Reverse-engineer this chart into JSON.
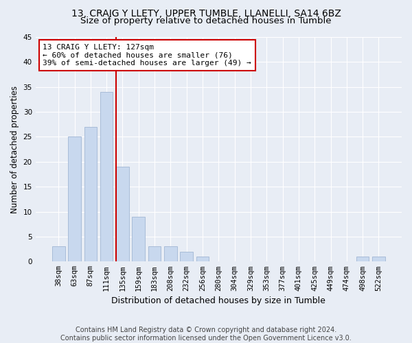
{
  "title1": "13, CRAIG Y LLETY, UPPER TUMBLE, LLANELLI, SA14 6BZ",
  "title2": "Size of property relative to detached houses in Tumble",
  "xlabel": "Distribution of detached houses by size in Tumble",
  "ylabel": "Number of detached properties",
  "categories": [
    "38sqm",
    "63sqm",
    "87sqm",
    "111sqm",
    "135sqm",
    "159sqm",
    "183sqm",
    "208sqm",
    "232sqm",
    "256sqm",
    "280sqm",
    "304sqm",
    "329sqm",
    "353sqm",
    "377sqm",
    "401sqm",
    "425sqm",
    "449sqm",
    "474sqm",
    "498sqm",
    "522sqm"
  ],
  "values": [
    3,
    25,
    27,
    34,
    19,
    9,
    3,
    3,
    2,
    1,
    0,
    0,
    0,
    0,
    0,
    0,
    0,
    0,
    0,
    1,
    1
  ],
  "bar_color": "#c8d8ee",
  "bar_edgecolor": "#a8bcd8",
  "vline_color": "#cc0000",
  "vline_index": 3.6,
  "annotation_text": "13 CRAIG Y LLETY: 127sqm\n← 60% of detached houses are smaller (76)\n39% of semi-detached houses are larger (49) →",
  "annotation_box_facecolor": "#ffffff",
  "annotation_box_edgecolor": "#cc0000",
  "ylim": [
    0,
    45
  ],
  "yticks": [
    0,
    5,
    10,
    15,
    20,
    25,
    30,
    35,
    40,
    45
  ],
  "background_color": "#e8edf5",
  "plot_bg_color": "#e8edf5",
  "grid_color": "#ffffff",
  "footer": "Contains HM Land Registry data © Crown copyright and database right 2024.\nContains public sector information licensed under the Open Government Licence v3.0.",
  "title1_fontsize": 10,
  "title2_fontsize": 9.5,
  "xlabel_fontsize": 9,
  "ylabel_fontsize": 8.5,
  "tick_fontsize": 7.5,
  "annotation_fontsize": 8,
  "footer_fontsize": 7
}
